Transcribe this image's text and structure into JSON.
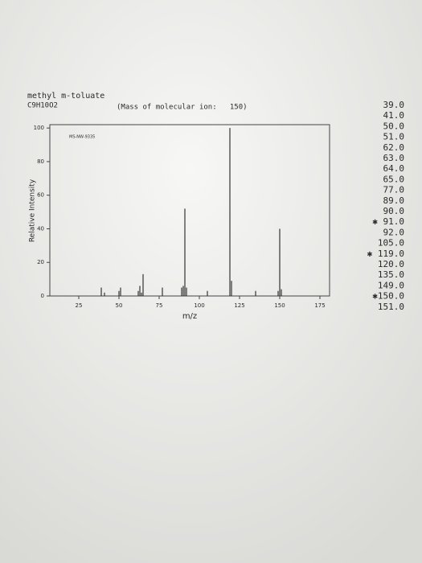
{
  "chart_data": {
    "type": "stick",
    "title": "methyl m-toluate",
    "subtitle": "C9H10O2",
    "annotation": "(Mass of molecular ion:   150)",
    "code": "MS-NW-9335",
    "x_label": "m/z",
    "y_label": "Relative Intensity",
    "x": [
      39,
      41,
      50,
      51,
      62,
      63,
      64,
      65,
      77,
      89,
      90,
      91,
      92,
      105,
      119,
      120,
      135,
      149,
      150,
      151
    ],
    "values": [
      5,
      2,
      3,
      5,
      3,
      6,
      2,
      13,
      5,
      5,
      6,
      52,
      5,
      3,
      100,
      9,
      3,
      3,
      40,
      4
    ],
    "color": "#333333",
    "xlim": [
      7,
      181
    ],
    "ylim": [
      0,
      102
    ],
    "xticks": [
      25,
      50,
      75,
      100,
      125,
      150,
      175
    ],
    "yticks": [
      0,
      20,
      40,
      60,
      80,
      100
    ],
    "grid": false
  },
  "side_list": [
    "39.0",
    "41.0",
    "50.0",
    "51.0",
    "62.0",
    "63.0",
    "64.0",
    "65.0",
    "77.0",
    "89.0",
    "90.0",
    "✱ 91.0",
    "92.0",
    "105.0",
    "✱ 119.0",
    "120.0",
    "135.0",
    "149.0",
    "✱150.0",
    "151.0"
  ]
}
